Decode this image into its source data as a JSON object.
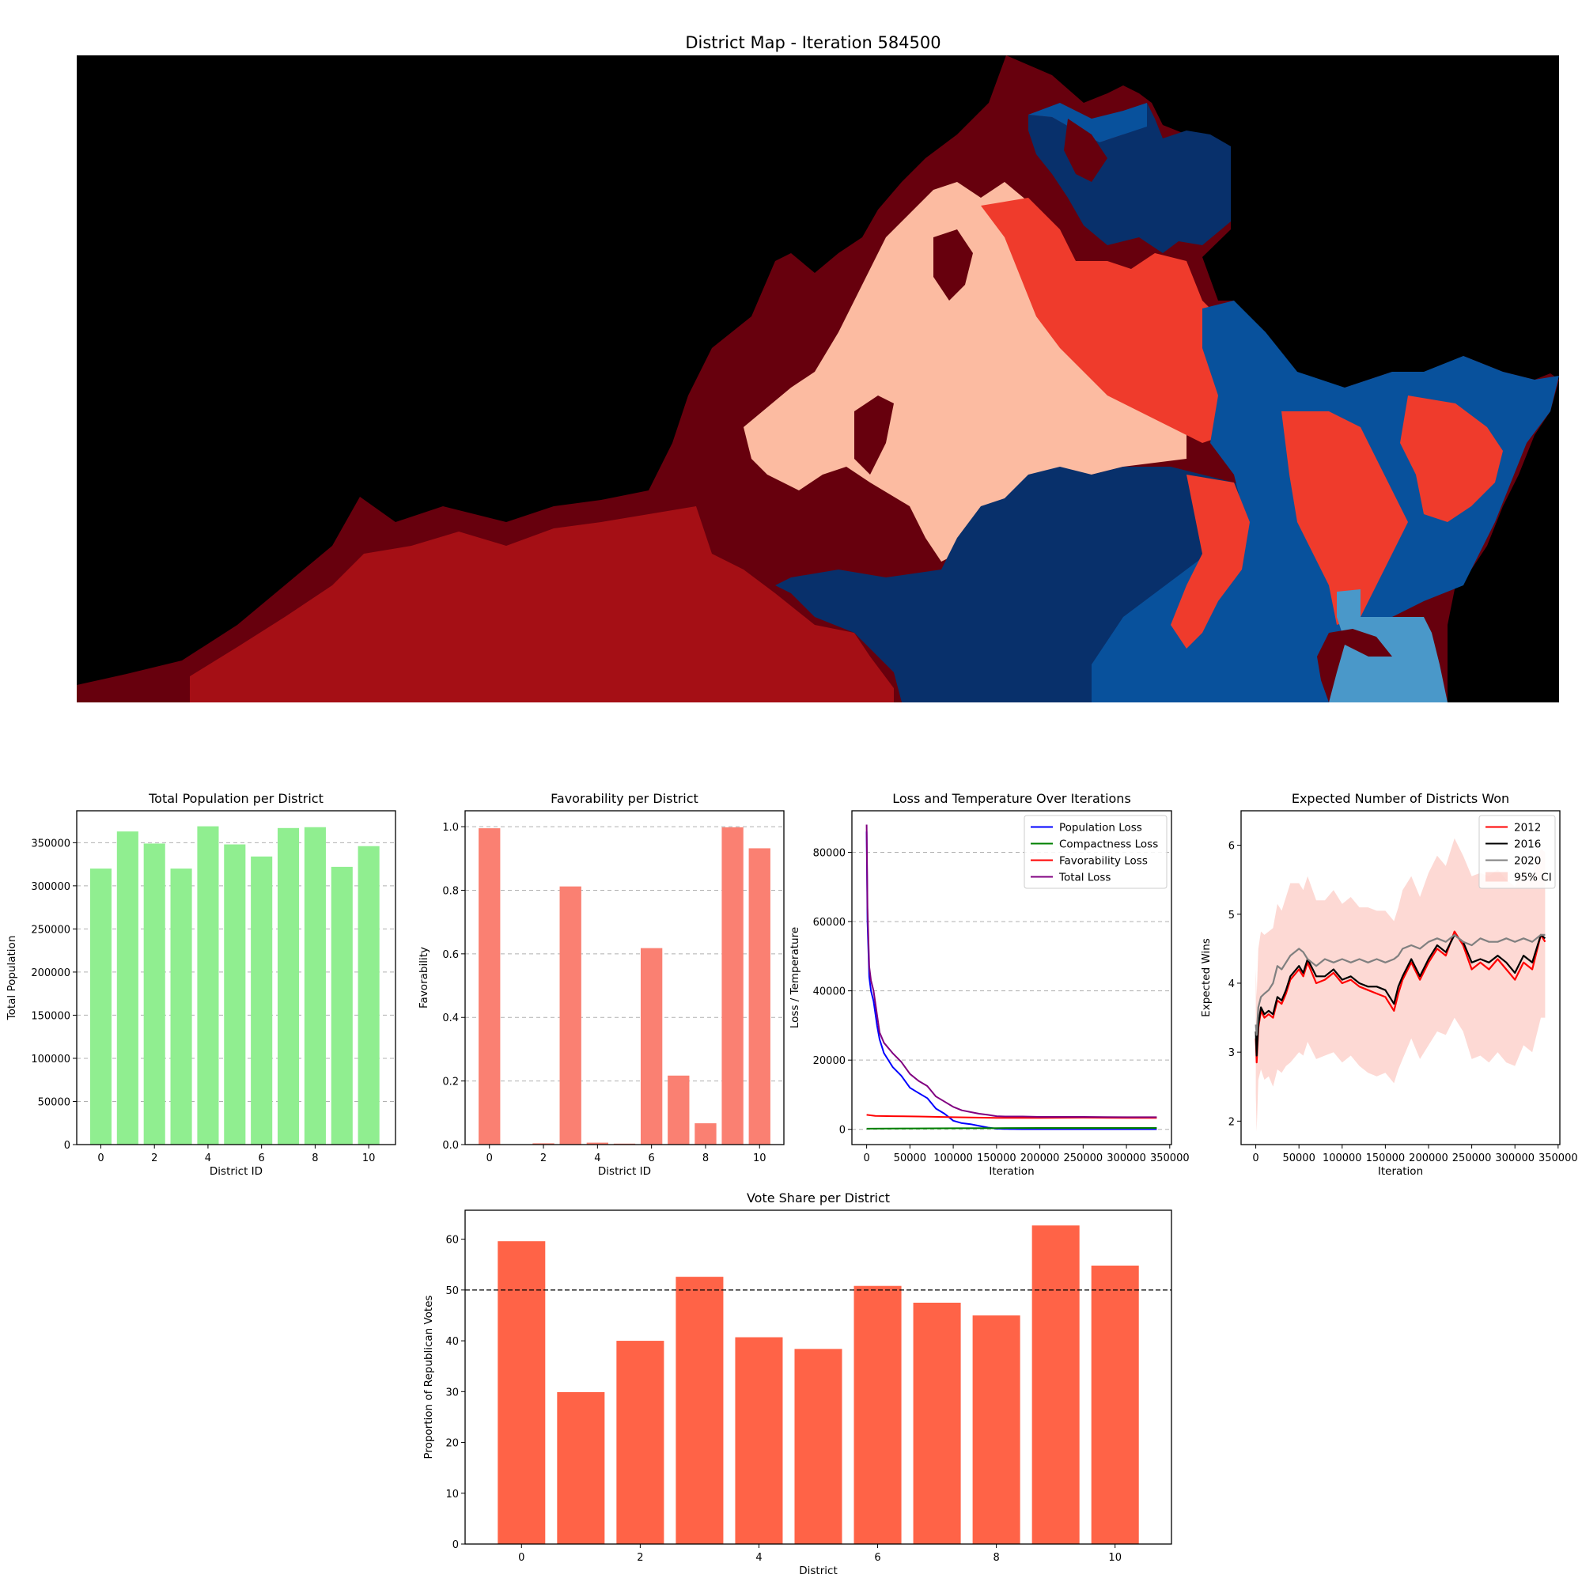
{
  "map": {
    "title": "District Map - Iteration 584500",
    "colors": {
      "background": "#000000",
      "dark_red": "#67000d",
      "red": "#a50f15",
      "bright_red": "#ef3b2c",
      "pink": "#fcbba1",
      "navy": "#08306b",
      "blue": "#08519c",
      "light_blue": "#4a98c9"
    }
  },
  "chart_data": [
    {
      "id": "population",
      "type": "bar",
      "title": "Total Population per District",
      "xlabel": "District ID",
      "ylabel": "Total Population",
      "categories": [
        0,
        1,
        2,
        3,
        4,
        5,
        6,
        7,
        8,
        9,
        10
      ],
      "values": [
        320000,
        363000,
        349000,
        320000,
        369000,
        348000,
        334000,
        367000,
        368000,
        322000,
        346000
      ],
      "xticks": [
        0,
        2,
        4,
        6,
        8,
        10
      ],
      "yticks": [
        0,
        50000,
        100000,
        150000,
        200000,
        250000,
        300000,
        350000
      ],
      "xlim": [
        -0.9,
        11.0
      ],
      "ylim": [
        0,
        387000
      ],
      "color": "#90ee90",
      "grid": "y-dashed"
    },
    {
      "id": "favorability",
      "type": "bar",
      "title": "Favorability per District",
      "xlabel": "District ID",
      "ylabel": "Favorability",
      "categories": [
        0,
        1,
        2,
        3,
        4,
        5,
        6,
        7,
        8,
        9,
        10
      ],
      "values": [
        0.995,
        0.0,
        0.004,
        0.812,
        0.006,
        0.003,
        0.618,
        0.217,
        0.067,
        0.998,
        0.932
      ],
      "xticks": [
        0,
        2,
        4,
        6,
        8,
        10
      ],
      "yticks": [
        0.0,
        0.2,
        0.4,
        0.6,
        0.8,
        1.0
      ],
      "ytick_labels": [
        "0.0",
        "0.2",
        "0.4",
        "0.6",
        "0.8",
        "1.0"
      ],
      "xlim": [
        -0.9,
        10.9
      ],
      "ylim": [
        0,
        1.05
      ],
      "color": "#fa8072",
      "grid": "y-dashed"
    },
    {
      "id": "loss",
      "type": "line",
      "title": "Loss and Temperature Over Iterations",
      "xlabel": "Iteration",
      "ylabel": "Loss / Temperature",
      "xticks": [
        0,
        50000,
        100000,
        150000,
        200000,
        250000,
        300000,
        350000
      ],
      "yticks": [
        0,
        20000,
        40000,
        60000,
        80000
      ],
      "xlim": [
        -17000,
        352000
      ],
      "ylim": [
        -4400,
        92000
      ],
      "legend": "top-right",
      "grid": "y-dashed",
      "series": [
        {
          "name": "Population Loss",
          "color": "#0000ff",
          "x": [
            0,
            1000,
            3000,
            5000,
            8000,
            12000,
            15000,
            20000,
            30000,
            40000,
            50000,
            60000,
            70000,
            80000,
            90000,
            100000,
            110000,
            120000,
            130000,
            140000,
            150000,
            160000,
            180000,
            200000,
            250000,
            300000,
            335000
          ],
          "y": [
            86000,
            60000,
            44000,
            40000,
            37000,
            30000,
            26000,
            22000,
            18000,
            15500,
            12000,
            10500,
            9000,
            6000,
            4500,
            2500,
            1800,
            1500,
            1000,
            500,
            200,
            100,
            50,
            50,
            50,
            50,
            50
          ]
        },
        {
          "name": "Compactness Loss",
          "color": "#008000",
          "x": [
            0,
            50000,
            100000,
            150000,
            200000,
            250000,
            300000,
            335000
          ],
          "y": [
            200,
            250,
            300,
            350,
            400,
            400,
            400,
            400
          ]
        },
        {
          "name": "Favorability Loss",
          "color": "#ff0000",
          "x": [
            0,
            10000,
            30000,
            60000,
            100000,
            150000,
            200000,
            250000,
            300000,
            335000
          ],
          "y": [
            4200,
            3900,
            3800,
            3700,
            3500,
            3300,
            3300,
            3400,
            3300,
            3300
          ]
        },
        {
          "name": "Total Loss",
          "color": "#800080",
          "x": [
            0,
            1000,
            3000,
            5000,
            8000,
            12000,
            15000,
            20000,
            30000,
            40000,
            50000,
            60000,
            70000,
            80000,
            90000,
            100000,
            110000,
            120000,
            130000,
            140000,
            150000,
            160000,
            180000,
            200000,
            250000,
            300000,
            335000
          ],
          "y": [
            88000,
            64000,
            47000,
            43000,
            40000,
            33000,
            28000,
            25000,
            22000,
            19500,
            16000,
            14000,
            12500,
            9500,
            8000,
            6500,
            5500,
            5000,
            4500,
            4200,
            3800,
            3700,
            3700,
            3600,
            3600,
            3500,
            3500
          ]
        }
      ]
    },
    {
      "id": "expected",
      "type": "line",
      "title": "Expected Number of Districts Won",
      "xlabel": "Iteration",
      "ylabel": "Expected Wins",
      "xticks": [
        0,
        50000,
        100000,
        150000,
        200000,
        250000,
        300000,
        350000
      ],
      "yticks": [
        2,
        3,
        4,
        5,
        6
      ],
      "xlim": [
        -17000,
        352000
      ],
      "ylim": [
        1.66,
        6.5
      ],
      "legend": "top-right",
      "series": [
        {
          "name": "2012",
          "color": "#ff0000",
          "x": [
            0,
            1000,
            3000,
            6000,
            10000,
            15000,
            20000,
            25000,
            30000,
            35000,
            40000,
            50000,
            55000,
            60000,
            70000,
            80000,
            90000,
            100000,
            110000,
            120000,
            130000,
            140000,
            150000,
            160000,
            165000,
            170000,
            180000,
            190000,
            200000,
            210000,
            220000,
            230000,
            240000,
            250000,
            260000,
            270000,
            280000,
            290000,
            300000,
            310000,
            320000,
            330000,
            335000
          ],
          "y": [
            3.2,
            2.85,
            3.35,
            3.6,
            3.5,
            3.55,
            3.5,
            3.75,
            3.7,
            3.85,
            4.05,
            4.2,
            4.1,
            4.3,
            4.0,
            4.05,
            4.15,
            4.0,
            4.05,
            3.95,
            3.9,
            3.85,
            3.8,
            3.6,
            3.85,
            4.05,
            4.3,
            4.05,
            4.3,
            4.5,
            4.4,
            4.75,
            4.55,
            4.2,
            4.3,
            4.2,
            4.35,
            4.2,
            4.05,
            4.3,
            4.2,
            4.7,
            4.6
          ]
        },
        {
          "name": "2016",
          "color": "#000000",
          "x": [
            0,
            1000,
            3000,
            6000,
            10000,
            15000,
            20000,
            25000,
            30000,
            35000,
            40000,
            50000,
            55000,
            60000,
            70000,
            80000,
            90000,
            100000,
            110000,
            120000,
            130000,
            140000,
            150000,
            160000,
            165000,
            170000,
            180000,
            190000,
            200000,
            210000,
            220000,
            230000,
            240000,
            250000,
            260000,
            270000,
            280000,
            290000,
            300000,
            310000,
            320000,
            330000,
            335000
          ],
          "y": [
            3.3,
            2.95,
            3.4,
            3.65,
            3.55,
            3.6,
            3.55,
            3.8,
            3.75,
            3.9,
            4.1,
            4.25,
            4.15,
            4.35,
            4.1,
            4.1,
            4.2,
            4.05,
            4.1,
            4.0,
            3.95,
            3.95,
            3.9,
            3.7,
            3.95,
            4.1,
            4.35,
            4.1,
            4.35,
            4.55,
            4.45,
            4.7,
            4.6,
            4.3,
            4.35,
            4.3,
            4.4,
            4.3,
            4.15,
            4.4,
            4.3,
            4.7,
            4.65
          ]
        },
        {
          "name": "2020",
          "color": "#808080",
          "x": [
            0,
            1000,
            3000,
            6000,
            10000,
            15000,
            20000,
            25000,
            30000,
            35000,
            40000,
            50000,
            55000,
            60000,
            70000,
            80000,
            90000,
            100000,
            110000,
            120000,
            130000,
            140000,
            150000,
            160000,
            165000,
            170000,
            180000,
            190000,
            200000,
            210000,
            220000,
            230000,
            240000,
            250000,
            260000,
            270000,
            280000,
            290000,
            300000,
            310000,
            320000,
            330000,
            335000
          ],
          "y": [
            3.4,
            3.25,
            3.65,
            3.8,
            3.85,
            3.9,
            4.0,
            4.25,
            4.2,
            4.3,
            4.4,
            4.5,
            4.45,
            4.35,
            4.25,
            4.35,
            4.3,
            4.35,
            4.3,
            4.35,
            4.3,
            4.35,
            4.3,
            4.35,
            4.4,
            4.5,
            4.55,
            4.5,
            4.6,
            4.65,
            4.6,
            4.7,
            4.6,
            4.55,
            4.65,
            4.6,
            4.6,
            4.65,
            4.6,
            4.65,
            4.6,
            4.7,
            4.7
          ]
        }
      ],
      "ci": {
        "name": "95% CI",
        "color": "#fa8072",
        "x": [
          0,
          1000,
          3000,
          6000,
          10000,
          15000,
          20000,
          25000,
          30000,
          35000,
          40000,
          50000,
          55000,
          60000,
          70000,
          80000,
          90000,
          100000,
          110000,
          120000,
          130000,
          140000,
          150000,
          160000,
          165000,
          170000,
          180000,
          190000,
          200000,
          210000,
          220000,
          230000,
          240000,
          250000,
          260000,
          270000,
          280000,
          290000,
          300000,
          310000,
          320000,
          330000,
          335000
        ],
        "lower": [
          2.4,
          1.85,
          2.6,
          2.75,
          2.6,
          2.65,
          2.5,
          2.75,
          2.7,
          2.8,
          2.85,
          3.0,
          2.95,
          3.15,
          2.9,
          2.95,
          3.0,
          2.85,
          2.95,
          2.8,
          2.7,
          2.65,
          2.7,
          2.55,
          2.75,
          2.9,
          3.2,
          2.9,
          3.1,
          3.3,
          3.25,
          3.5,
          3.3,
          2.9,
          2.95,
          2.85,
          3.0,
          2.85,
          2.8,
          3.1,
          3.0,
          3.5,
          3.5
        ],
        "upper": [
          4.2,
          3.8,
          4.5,
          4.75,
          4.7,
          4.75,
          4.8,
          5.15,
          5.05,
          5.25,
          5.45,
          5.45,
          5.35,
          5.55,
          5.2,
          5.2,
          5.35,
          5.15,
          5.25,
          5.1,
          5.1,
          5.05,
          5.05,
          4.9,
          5.1,
          5.35,
          5.55,
          5.25,
          5.6,
          5.85,
          5.7,
          6.1,
          5.85,
          5.55,
          5.6,
          5.55,
          5.65,
          5.5,
          5.4,
          5.65,
          5.55,
          5.95,
          5.9
        ]
      }
    },
    {
      "id": "voteshare",
      "type": "bar",
      "title": "Vote Share per District",
      "xlabel": "District",
      "ylabel": "Proportion of Republican Votes",
      "categories": [
        0,
        1,
        2,
        3,
        4,
        5,
        6,
        7,
        8,
        9,
        10
      ],
      "values": [
        59.6,
        29.9,
        40.0,
        52.6,
        40.7,
        38.4,
        50.8,
        47.5,
        45.0,
        62.7,
        54.8
      ],
      "xticks": [
        0,
        2,
        4,
        6,
        8,
        10
      ],
      "yticks": [
        0,
        10,
        20,
        30,
        40,
        50,
        60
      ],
      "xlim": [
        -0.95,
        10.95
      ],
      "ylim": [
        0,
        65.7
      ],
      "reference_line": 50,
      "color": "#ff6347"
    }
  ]
}
